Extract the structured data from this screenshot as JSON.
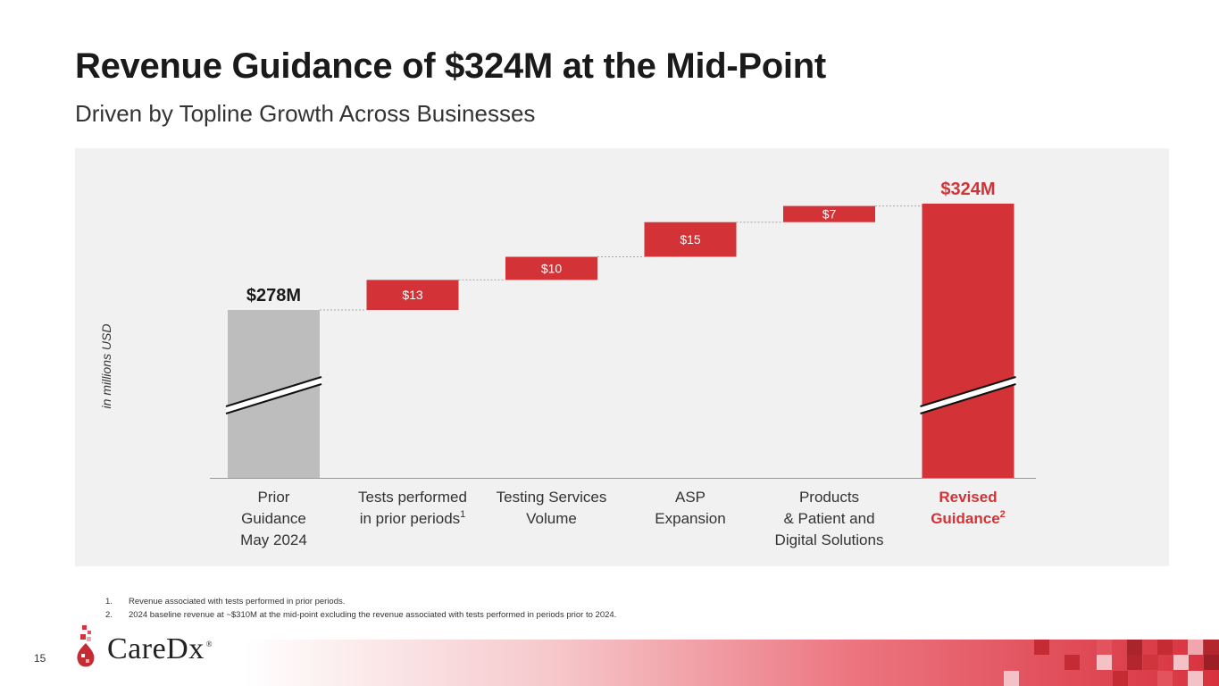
{
  "page": {
    "title": "Revenue Guidance of $324M at the Mid-Point",
    "subtitle": "Driven by Topline Growth Across Businesses",
    "page_number": "15"
  },
  "logo": {
    "name": "CareDx",
    "registered": "®"
  },
  "footnotes": [
    {
      "num": "1.",
      "text": "Revenue associated with tests performed in prior periods."
    },
    {
      "num": "2.",
      "text": "2024 baseline revenue at ~$310M at the mid-point excluding the revenue associated with tests performed in periods prior to 2024."
    }
  ],
  "colors": {
    "accent": "#d33336",
    "base_bar": "#bdbdbd",
    "panel": "#f1f1f1"
  },
  "chart_data": {
    "type": "waterfall",
    "title": "",
    "ylabel": "in millions USD",
    "axis_break": true,
    "ylim": [
      240,
      335
    ],
    "categories": [
      {
        "lines": [
          "Prior",
          "Guidance",
          "May 2024"
        ],
        "sup": ""
      },
      {
        "lines": [
          "Tests performed",
          "in prior periods"
        ],
        "sup": "1"
      },
      {
        "lines": [
          "Testing Services",
          "Volume"
        ],
        "sup": ""
      },
      {
        "lines": [
          "ASP",
          "Expansion"
        ],
        "sup": ""
      },
      {
        "lines": [
          "Products",
          "& Patient and",
          "Digital Solutions"
        ],
        "sup": ""
      },
      {
        "lines": [
          "Revised",
          "Guidance"
        ],
        "sup": "2"
      }
    ],
    "steps": [
      {
        "kind": "total",
        "value": 278,
        "label": "$278M"
      },
      {
        "kind": "delta",
        "value": 13,
        "label": "$13"
      },
      {
        "kind": "delta",
        "value": 10,
        "label": "$10"
      },
      {
        "kind": "delta",
        "value": 15,
        "label": "$15"
      },
      {
        "kind": "delta",
        "value": 7,
        "label": "$7"
      },
      {
        "kind": "total",
        "value": 324,
        "label": "$324M"
      }
    ]
  }
}
